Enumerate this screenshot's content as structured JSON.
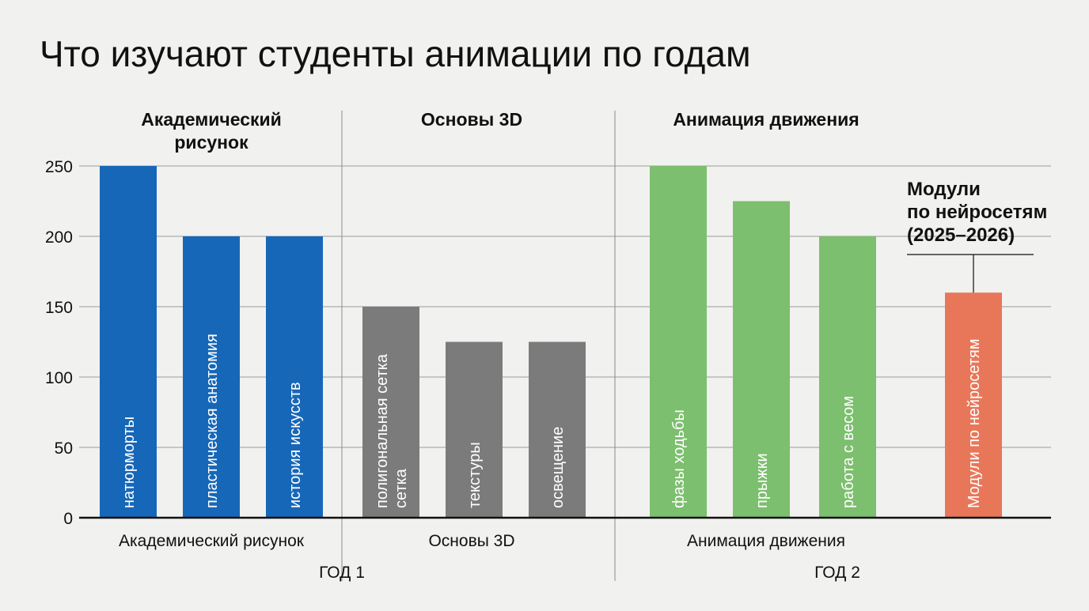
{
  "chart_data": {
    "type": "bar",
    "title": "Что изучают студенты анимации по годам",
    "ylim": [
      0,
      250
    ],
    "yticks": [
      0,
      50,
      100,
      150,
      200,
      250
    ],
    "grid": true,
    "groups": [
      {
        "name": "Академический рисунок",
        "heading_lines": [
          "Академический",
          "рисунок"
        ],
        "color": "#1767b8",
        "bars": [
          {
            "label": [
              "натюрморты"
            ],
            "value": 250
          },
          {
            "label": [
              "пластическая анатомия"
            ],
            "value": 200
          },
          {
            "label": [
              "история искусств"
            ],
            "value": 200
          }
        ]
      },
      {
        "name": "Основы 3D",
        "heading_lines": [
          "Основы 3D"
        ],
        "color": "#7b7b7b",
        "bars": [
          {
            "label": [
              "полигональная сетка",
              "сетка"
            ],
            "value": 150
          },
          {
            "label": [
              "текстуры"
            ],
            "value": 125
          },
          {
            "label": [
              "освещение"
            ],
            "value": 125
          }
        ]
      },
      {
        "name": "Анимация движения",
        "heading_lines": [
          "Анимация движения"
        ],
        "color": "#7cbf6e",
        "bars": [
          {
            "label": [
              "фазы ходьбы"
            ],
            "value": 250
          },
          {
            "label": [
              "прыжки"
            ],
            "value": 225
          },
          {
            "label": [
              "работа с весом"
            ],
            "value": 200
          }
        ]
      },
      {
        "name": "",
        "heading_lines": [],
        "color": "#e8775a",
        "bars": [
          {
            "label": [
              "Модули по нейросетям"
            ],
            "value": 160
          }
        ]
      }
    ],
    "years": [
      "ГОД 1",
      "ГОД 2"
    ],
    "callout": {
      "lines": [
        "Модули",
        "по нейросетям",
        "(2025–2026)"
      ],
      "target_bar": "Модули по нейросетям"
    }
  }
}
